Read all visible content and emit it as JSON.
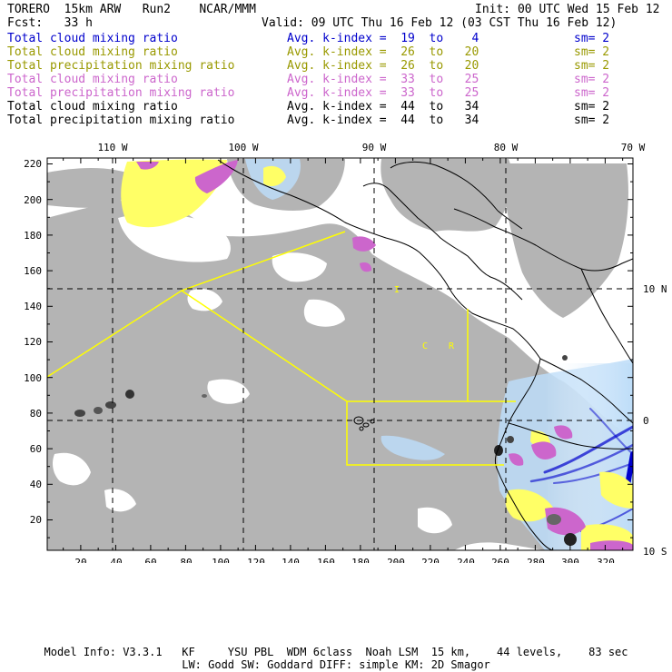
{
  "header": {
    "model": "TORERO  15km ARW   Run2    NCAR/MMM",
    "init": "Init: 00 UTC Wed 15 Feb 12",
    "fcst": "Fcst:   33 h",
    "valid": "Valid: 09 UTC Thu 16 Feb 12 (03 CST Thu 16 Feb 12)"
  },
  "legend": [
    {
      "field": "Total cloud mixing ratio",
      "kindex": "Avg. k-index =  19  to    4",
      "sm": "sm= 2",
      "color": "#0000cc"
    },
    {
      "field": "Total cloud mixing ratio",
      "kindex": "Avg. k-index =  26  to   20",
      "sm": "sm= 2",
      "color": "#999900"
    },
    {
      "field": "Total precipitation mixing ratio",
      "kindex": "Avg. k-index =  26  to   20",
      "sm": "sm= 2",
      "color": "#999900"
    },
    {
      "field": "Total cloud mixing ratio",
      "kindex": "Avg. k-index =  33  to   25",
      "sm": "sm= 2",
      "color": "#cc66cc"
    },
    {
      "field": "Total precipitation mixing ratio",
      "kindex": "Avg. k-index =  33  to   25",
      "sm": "sm= 2",
      "color": "#cc66cc"
    },
    {
      "field": "Total cloud mixing ratio",
      "kindex": "Avg. k-index =  44  to   34",
      "sm": "sm= 2",
      "color": "#000000"
    },
    {
      "field": "Total precipitation mixing ratio",
      "kindex": "Avg. k-index =  44  to   34",
      "sm": "sm= 2",
      "color": "#000000"
    }
  ],
  "map": {
    "lon_labels": [
      "110 W",
      "100 W",
      "90 W",
      "80 W",
      "70 W"
    ],
    "lat_labels": [
      "10 N",
      "0",
      "10 S"
    ],
    "x_ticks": [
      "20",
      "40",
      "60",
      "80",
      "100",
      "120",
      "140",
      "160",
      "180",
      "200",
      "220",
      "240",
      "260",
      "280",
      "300",
      "320"
    ],
    "y_ticks": [
      "220",
      "200",
      "180",
      "160",
      "140",
      "120",
      "100",
      "80",
      "60",
      "40",
      "20"
    ],
    "letters": [
      "I",
      "C",
      "R"
    ],
    "colors": {
      "cloud_gray": "#b4b4b4",
      "yellow": "#ffff66",
      "purple": "#cc66cc",
      "blue": "#0000cc",
      "light_blue": "#bcdcf8",
      "boundary": "#ffff00"
    }
  },
  "footer": {
    "line1": "Model Info: V3.3.1   KF     YSU PBL  WDM 6class  Noah LSM  15 km,    44 levels,    83 sec",
    "line2": "LW: Godd SW: Goddard DIFF: simple KM: 2D Smagor"
  }
}
